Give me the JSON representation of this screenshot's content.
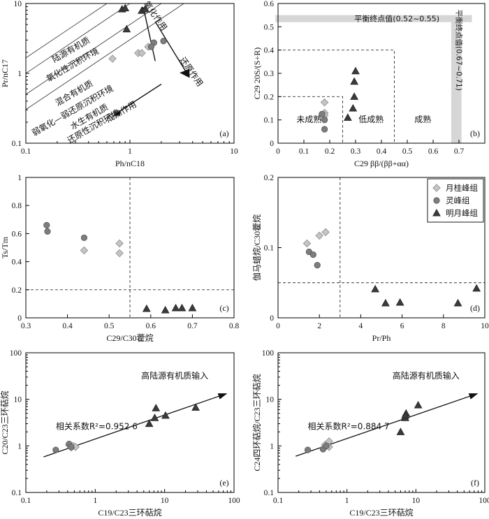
{
  "charts": [
    {
      "id": "a",
      "type": "scatter",
      "panel_label": "(a)",
      "xscale": "log",
      "yscale": "log",
      "xlim": [
        0.1,
        10
      ],
      "ylim": [
        0.1,
        10
      ],
      "xticks": [
        0.1,
        1,
        10
      ],
      "xticklabels": [
        "0.1",
        "1",
        "10"
      ],
      "yticks": [
        0.1,
        1,
        10
      ],
      "yticklabels": [
        "0.1",
        "1",
        "10"
      ],
      "xlabel": "Ph/nC18",
      "ylabel": "Pr/nC17",
      "series": [
        {
          "marker": "diamond",
          "points": [
            [
              0.68,
              1.62
            ],
            [
              1.2,
              1.95
            ],
            [
              1.3,
              1.95
            ],
            [
              1.5,
              2.4
            ]
          ]
        },
        {
          "marker": "circle",
          "points": [
            [
              1.7,
              2.75
            ],
            [
              2.1,
              2.9
            ],
            [
              1.6,
              2.4
            ]
          ]
        },
        {
          "marker": "triangle",
          "points": [
            [
              0.84,
              8.3
            ],
            [
              0.9,
              8.6
            ],
            [
              1.3,
              7.9
            ],
            [
              1.4,
              8.3
            ],
            [
              0.93,
              4.3
            ]
          ]
        }
      ],
      "diagonals": [
        [
          0.6,
          10
        ],
        [
          1.0,
          10
        ],
        [
          2.0,
          10
        ],
        [
          3.3,
          10
        ]
      ],
      "annotations": [
        {
          "text": "陆源有机质",
          "x": 0.28,
          "y": 2.0,
          "rotate": -30
        },
        {
          "text": "氧化性沉积环境",
          "x": 0.29,
          "y": 1.22,
          "rotate": -30
        },
        {
          "text": "混合有机质",
          "x": 0.3,
          "y": 0.48,
          "rotate": -30
        },
        {
          "text": "弱氧化—弱还原沉积环境",
          "x": 0.29,
          "y": 0.27,
          "rotate": -30
        },
        {
          "text": "水生有机质",
          "x": 0.42,
          "y": 0.22,
          "rotate": -30
        },
        {
          "text": "还原性沉积环境",
          "x": 0.46,
          "y": 0.16,
          "rotate": -30
        },
        {
          "text": "氧化作用",
          "x": 1.67,
          "y": 6.3,
          "rotate": 55
        },
        {
          "text": "还原作用",
          "x": 3.7,
          "y": 1.0,
          "rotate": 55
        },
        {
          "text": "成熟作用",
          "x": 0.85,
          "y": 0.26,
          "rotate": -30
        }
      ]
    },
    {
      "id": "b",
      "type": "scatter",
      "panel_label": "(b)",
      "xscale": "linear",
      "yscale": "linear",
      "xlim": [
        0,
        0.8
      ],
      "ylim": [
        0,
        0.6
      ],
      "xticks": [
        0,
        0.1,
        0.2,
        0.3,
        0.4,
        0.5,
        0.6,
        0.7
      ],
      "xticklabels": [
        "0",
        "0.1",
        "0.2",
        "0.3",
        "0.4",
        "0.5",
        "0.6",
        "0.7"
      ],
      "yticks": [
        0,
        0.1,
        0.2,
        0.3,
        0.4,
        0.5,
        0.6
      ],
      "yticklabels": [
        "0",
        "0.1",
        "0.2",
        "0.3",
        "0.4",
        "0.5",
        "0.6"
      ],
      "xlabel": "C29 ββ/(ββ+αα)",
      "ylabel": "C29 20S/(S+R)",
      "series": [
        {
          "marker": "diamond",
          "points": [
            [
              0.18,
              0.175
            ],
            [
              0.18,
              0.13
            ],
            [
              0.18,
              0.12
            ],
            [
              0.175,
              0.11
            ]
          ]
        },
        {
          "marker": "circle",
          "points": [
            [
              0.18,
              0.06
            ],
            [
              0.18,
              0.1
            ],
            [
              0.17,
              0.125
            ]
          ]
        },
        {
          "marker": "triangle",
          "points": [
            [
              0.3,
              0.31
            ],
            [
              0.295,
              0.265
            ],
            [
              0.295,
              0.2
            ],
            [
              0.29,
              0.15
            ],
            [
              0.27,
              0.11
            ]
          ]
        }
      ],
      "balance_h": {
        "label": "平衡终点值(0.52~0.55)",
        "y0": 0.52,
        "y1": 0.55,
        "x0": -0.01,
        "x1": 0.75
      },
      "balance_v": {
        "label": "平衡终点值(0.67~0.71)",
        "x0": 0.67,
        "x1": 0.71,
        "y0": 0,
        "y1": 0.55
      },
      "annotations": [
        {
          "text": "未成熟",
          "x": 0.12,
          "y": 0.09
        },
        {
          "text": "低成熟",
          "x": 0.36,
          "y": 0.09
        },
        {
          "text": "成熟",
          "x": 0.56,
          "y": 0.09
        }
      ]
    },
    {
      "id": "c",
      "type": "scatter",
      "panel_label": "(c)",
      "xscale": "linear",
      "yscale": "linear",
      "xlim": [
        0.3,
        0.8
      ],
      "ylim": [
        0,
        1
      ],
      "xticks": [
        0.3,
        0.4,
        0.5,
        0.6,
        0.7,
        0.8
      ],
      "xticklabels": [
        "0.3",
        "0.4",
        "0.5",
        "0.6",
        "0.7",
        "0.8"
      ],
      "yticks": [
        0,
        0.2,
        0.4,
        0.6,
        0.8,
        1
      ],
      "yticklabels": [
        "0",
        "0.2",
        "0.4",
        "0.6",
        "0.8",
        "1"
      ],
      "xlabel": "C29/C30藿烷",
      "ylabel": "Ts/Tm",
      "series": [
        {
          "marker": "diamond",
          "points": [
            [
              0.44,
              0.48
            ],
            [
              0.525,
              0.53
            ],
            [
              0.525,
              0.46
            ]
          ]
        },
        {
          "marker": "circle",
          "points": [
            [
              0.35,
              0.66
            ],
            [
              0.352,
              0.615
            ],
            [
              0.44,
              0.57
            ]
          ]
        },
        {
          "marker": "triangle",
          "points": [
            [
              0.59,
              0.065
            ],
            [
              0.635,
              0.055
            ],
            [
              0.66,
              0.07
            ],
            [
              0.675,
              0.07
            ],
            [
              0.7,
              0.07
            ]
          ]
        }
      ]
    },
    {
      "id": "d",
      "type": "scatter",
      "panel_label": "(d)",
      "xscale": "linear",
      "yscale": "linear",
      "xlim": [
        0,
        10
      ],
      "ylim": [
        0,
        0.2
      ],
      "xticks": [
        0,
        2,
        4,
        6,
        8,
        10
      ],
      "xticklabels": [
        "0",
        "2",
        "4",
        "6",
        "8",
        "10"
      ],
      "yticks": [
        0,
        0.1,
        0.2
      ],
      "yticklabels": [
        "0",
        "0.1",
        "0.2"
      ],
      "xlabel": "Pr/Ph",
      "ylabel": "伽马蜡烷/C30藿烷",
      "series": [
        {
          "marker": "diamond",
          "points": [
            [
              1.4,
              0.106
            ],
            [
              2.0,
              0.117
            ],
            [
              2.3,
              0.122
            ]
          ]
        },
        {
          "marker": "circle",
          "points": [
            [
              1.5,
              0.094
            ],
            [
              1.7,
              0.09
            ],
            [
              1.9,
              0.075
            ]
          ]
        },
        {
          "marker": "triangle",
          "points": [
            [
              4.7,
              0.041
            ],
            [
              5.2,
              0.021
            ],
            [
              5.9,
              0.022
            ],
            [
              8.7,
              0.021
            ],
            [
              9.6,
              0.042
            ]
          ]
        }
      ],
      "legend": {
        "placement": "top-right",
        "items": [
          {
            "marker": "diamond",
            "label": "月桂峰组"
          },
          {
            "marker": "circle",
            "label": "灵峰组"
          },
          {
            "marker": "triangle",
            "label": "明月峰组"
          }
        ]
      }
    },
    {
      "id": "e",
      "type": "scatter",
      "panel_label": "(e)",
      "xscale": "log",
      "yscale": "log",
      "xlim": [
        0.1,
        100
      ],
      "ylim": [
        0.1,
        100
      ],
      "xticks": [
        0.1,
        1,
        10,
        100
      ],
      "xticklabels": [
        "0.1",
        "1",
        "10",
        "100"
      ],
      "yticks": [
        0.1,
        1,
        10,
        100
      ],
      "yticklabels": [
        "0.1",
        "1",
        "10",
        "100"
      ],
      "xlabel": "C19/C23三环萜烷",
      "ylabel": "C20/C23三环萜烷",
      "series": [
        {
          "marker": "diamond",
          "points": [
            [
              0.42,
              1.05
            ],
            [
              0.48,
              1.0
            ],
            [
              0.52,
              0.95
            ],
            [
              0.45,
              0.92
            ]
          ]
        },
        {
          "marker": "circle",
          "points": [
            [
              0.27,
              0.82
            ],
            [
              0.42,
              1.1
            ],
            [
              0.45,
              0.95
            ]
          ]
        },
        {
          "marker": "triangle",
          "points": [
            [
              6.0,
              3.0
            ],
            [
              7.2,
              4.0
            ],
            [
              7.5,
              6.5
            ],
            [
              10.3,
              4.5
            ],
            [
              28,
              6.7
            ]
          ]
        }
      ],
      "regression_text": "相关系数R²=0.952 6",
      "trend_text": "高陆源有机质输入"
    },
    {
      "id": "f",
      "type": "scatter",
      "panel_label": "(f)",
      "xscale": "log",
      "yscale": "log",
      "xlim": [
        0.1,
        100
      ],
      "ylim": [
        0.1,
        100
      ],
      "xticks": [
        0.1,
        1,
        10,
        100
      ],
      "xticklabels": [
        "0.1",
        "1",
        "10",
        "100"
      ],
      "yticks": [
        0.1,
        1,
        10,
        100
      ],
      "yticklabels": [
        "0.1",
        "1",
        "10",
        "100"
      ],
      "xlabel": "C19/C23三环萜烷",
      "ylabel": "C24四环萜烷/C23三环萜烷",
      "series": [
        {
          "marker": "diamond",
          "points": [
            [
              0.48,
              1.05
            ],
            [
              0.55,
              1.25
            ],
            [
              0.55,
              0.95
            ],
            [
              0.5,
              1.0
            ]
          ]
        },
        {
          "marker": "circle",
          "points": [
            [
              0.27,
              0.82
            ],
            [
              0.45,
              0.85
            ],
            [
              0.5,
              1.0
            ]
          ]
        },
        {
          "marker": "triangle",
          "points": [
            [
              6.0,
              2.0
            ],
            [
              7.0,
              4.0
            ],
            [
              7.2,
              5.0
            ],
            [
              10.8,
              7.5
            ],
            [
              7.0,
              4.5
            ]
          ]
        }
      ],
      "regression_text": "相关系数R²=0.884 7",
      "trend_text": "高陆源有机质输入"
    }
  ]
}
